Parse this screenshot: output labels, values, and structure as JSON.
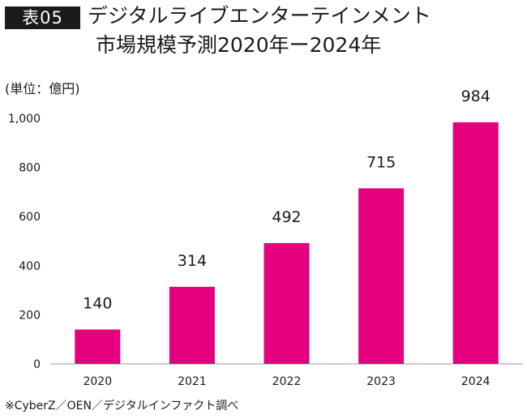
{
  "header": {
    "badge": "表05",
    "title_line1": "デジタルライブエンターテインメント",
    "title_line2": "市場規模予測2020年ー2024年"
  },
  "unit_label": "(単位：億円)",
  "source_note": "※CyberZ／OEN／デジタルインファクト調べ",
  "colors": {
    "bar": "#e5007e",
    "axis": "#9a9a9a",
    "text": "#1a1a1a"
  },
  "chart_data": {
    "type": "bar",
    "title": "デジタルライブエンターテインメント市場規模予測2020年ー2024年",
    "ylabel": "(単位：億円)",
    "categories": [
      "2020",
      "2021",
      "2022",
      "2023",
      "2024"
    ],
    "values": [
      140,
      314,
      492,
      715,
      984
    ],
    "value_labels": [
      "140",
      "314",
      "492",
      "715",
      "984"
    ],
    "yticks": [
      0,
      200,
      400,
      600,
      800,
      1000
    ],
    "ytick_labels": [
      "0",
      "200",
      "400",
      "600",
      "800",
      "1,000"
    ],
    "ylim": [
      0,
      1000
    ],
    "grid": false,
    "legend": "none"
  }
}
